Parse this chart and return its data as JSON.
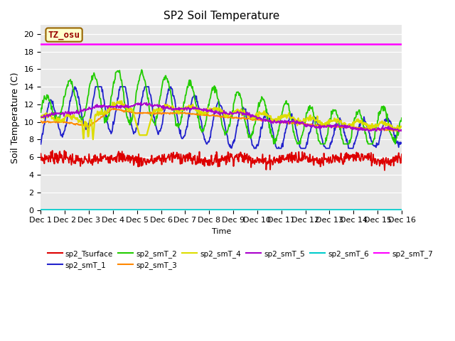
{
  "title": "SP2 Soil Temperature",
  "ylabel": "Soil Temperature (C)",
  "xlabel": "Time",
  "tz_label": "TZ_osu",
  "ylim": [
    0,
    21
  ],
  "yticks": [
    0,
    2,
    4,
    6,
    8,
    10,
    12,
    14,
    16,
    18,
    20
  ],
  "bg_color": "#e8e8e8",
  "series_colors": {
    "sp2_Tsurface": "#dd0000",
    "sp2_smT_1": "#2222cc",
    "sp2_smT_2": "#22cc00",
    "sp2_smT_3": "#ff8800",
    "sp2_smT_4": "#dddd00",
    "sp2_smT_5": "#aa00cc",
    "sp2_smT_6": "#00cccc",
    "sp2_smT_7": "#ff00ff"
  },
  "xtick_labels": [
    "Dec 1",
    "Dec 2",
    "Dec 3",
    "Dec 4",
    "Dec 5",
    "Dec 6",
    "Dec 7",
    "Dec 8",
    "Dec 9",
    "Dec 10",
    "Dec 11",
    "Dec 12",
    "Dec 13",
    "Dec 14",
    "Dec 15",
    "Dec 16"
  ],
  "n_points": 720,
  "sp2_smT_7_value": 18.85,
  "sp2_smT_6_value": 0.05
}
